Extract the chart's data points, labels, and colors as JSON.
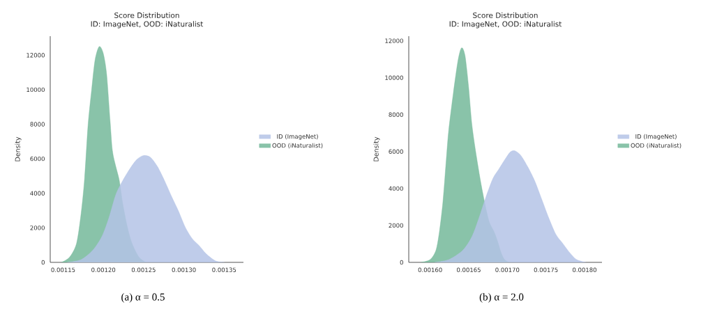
{
  "chart_data": [
    {
      "type": "area",
      "title": "Score Distribution",
      "subtitle": "ID: ImageNet, OOD: iNaturalist",
      "ylabel": "Density",
      "legend": "right",
      "annotations": [
        "(a) α = 0.5"
      ],
      "xlim": [
        0.001134,
        0.001374
      ],
      "ylim": [
        0,
        13100
      ],
      "xticks": [
        0.00115,
        {
          "value": 0.0012,
          "label": "0.00120"
        },
        0.00125,
        {
          "value": 0.0013,
          "label": "0.00130"
        },
        0.00135
      ],
      "yticks": [
        0,
        2000,
        4000,
        6000,
        8000,
        10000,
        12000
      ],
      "series": [
        {
          "name": "ID (ImageNet)",
          "color": "#b4c3e6",
          "x": [
            0.0011552,
            0.0011724,
            0.0011868,
            0.0011983,
            0.0012069,
            0.0012155,
            0.0012241,
            0.0012328,
            0.0012414,
            0.00125,
            0.0012586,
            0.0012673,
            0.0012759,
            0.001285,
            0.0012931,
            0.0013017,
            0.0013104,
            0.001319,
            0.0013276,
            0.0013391,
            0.0013506
          ],
          "values": [
            0,
            160,
            700,
            1510,
            2580,
            3930,
            4740,
            5410,
            5950,
            6190,
            6080,
            5540,
            4740,
            3790,
            2990,
            2040,
            1370,
            970,
            500,
            90,
            0
          ]
        },
        {
          "name": "OOD (iNaturalist)",
          "color": "#74b99a",
          "x": [
            0.001148,
            0.001158,
            0.0011667,
            0.0011724,
            0.0011767,
            0.001181,
            0.0011854,
            0.0011897,
            0.0011948,
            0.0011997,
            0.001204,
            0.0012083,
            0.0012112,
            0.0012155,
            0.0012198,
            0.0012241,
            0.0012299,
            0.0012356,
            0.0012443,
            0.0012529
          ],
          "values": [
            0,
            300,
            1100,
            2850,
            4870,
            7960,
            9980,
            11730,
            12500,
            12130,
            10920,
            8230,
            6480,
            5540,
            4740,
            3390,
            2040,
            1100,
            300,
            0
          ]
        }
      ]
    },
    {
      "type": "area",
      "title": "Score Distribution",
      "subtitle": "ID: ImageNet, OOD: iNaturalist",
      "ylabel": "Density",
      "legend": "right",
      "annotations": [
        "(b) α = 2.0"
      ],
      "xlim": [
        0.0015723,
        0.0018226
      ],
      "ylim": [
        0,
        12250
      ],
      "xticks": [
        {
          "value": 0.0016,
          "label": "0.00160"
        },
        0.00165,
        {
          "value": 0.0017,
          "label": "0.00170"
        },
        0.00175,
        {
          "value": 0.0018,
          "label": "0.00180"
        }
      ],
      "yticks": [
        0,
        2000,
        4000,
        6000,
        8000,
        10000,
        12000
      ],
      "series": [
        {
          "name": "ID (ImageNet)",
          "color": "#b4c3e6",
          "x": [
            0.001606,
            0.0016241,
            0.0016422,
            0.0016542,
            0.0016633,
            0.0016723,
            0.0016813,
            0.0016889,
            0.0016964,
            0.0017039,
            0.0017099,
            0.0017175,
            0.0017265,
            0.0017355,
            0.0017446,
            0.0017536,
            0.0017627,
            0.0017717,
            0.0017807,
            0.0017898,
            0.0018018
          ],
          "values": [
            0,
            150,
            650,
            1400,
            2410,
            3540,
            4540,
            5040,
            5540,
            5980,
            6040,
            5790,
            5170,
            4410,
            3410,
            2410,
            1530,
            1030,
            530,
            150,
            0
          ]
        },
        {
          "name": "OOD (iNaturalist)",
          "color": "#74b99a",
          "x": [
            0.001588,
            0.0016,
            0.0016075,
            0.001612,
            0.0016166,
            0.0016211,
            0.0016241,
            0.0016301,
            0.0016361,
            0.0016407,
            0.0016452,
            0.0016497,
            0.0016542,
            0.0016602,
            0.0016663,
            0.0016723,
            0.0016768,
            0.0016828,
            0.0016873,
            0.0016919,
            0.0016964,
            0.0017024
          ],
          "values": [
            0,
            150,
            650,
            1660,
            3290,
            5670,
            7170,
            9180,
            10930,
            11620,
            11190,
            9550,
            7420,
            5670,
            4160,
            2910,
            2160,
            1660,
            1150,
            530,
            150,
            0
          ]
        }
      ]
    }
  ]
}
